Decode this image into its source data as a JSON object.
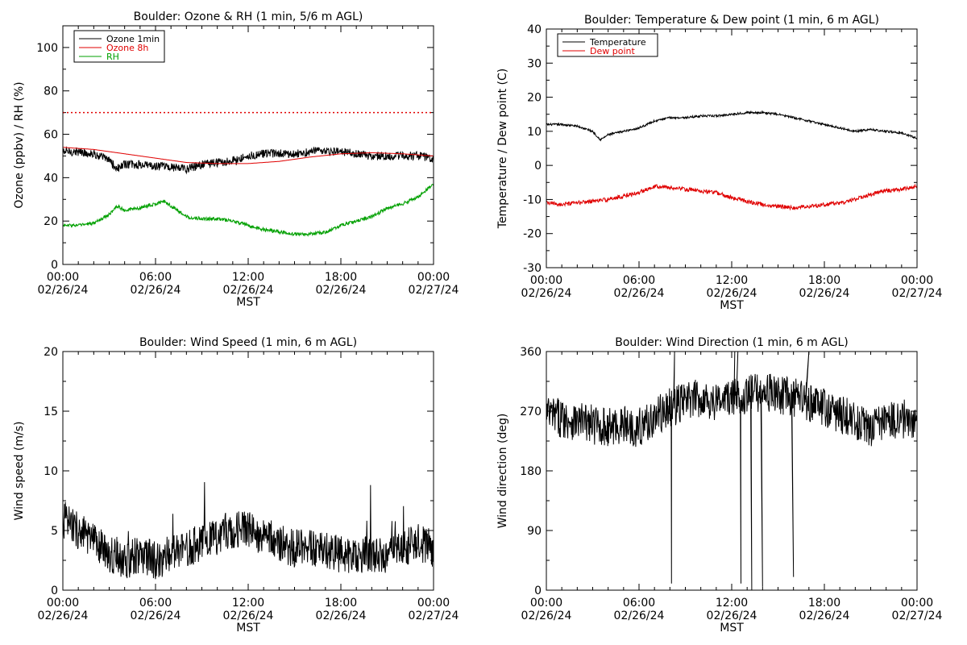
{
  "colors": {
    "background": "#ffffff",
    "axis": "#000000",
    "ozone_1min": "#000000",
    "ozone_8h": "#e00000",
    "rh": "#00a000",
    "temperature": "#000000",
    "dew_point": "#e00000",
    "wind": "#000000"
  },
  "chart_data": [
    {
      "id": "ozone_rh",
      "type": "line",
      "title": "Boulder: Ozone & RH (1 min, 5/6 m AGL)",
      "xlabel": "MST",
      "ylabel": "Ozone (ppbv) / RH (%)",
      "ylim": [
        0,
        110
      ],
      "yticks": [
        0,
        20,
        40,
        60,
        80,
        100
      ],
      "xlim": [
        "02/26/24 00:00",
        "02/27/24 00:00"
      ],
      "xticks": [
        {
          "time": "00:00",
          "date": "02/26/24"
        },
        {
          "time": "06:00",
          "date": "02/26/24"
        },
        {
          "time": "12:00",
          "date": "02/26/24"
        },
        {
          "time": "18:00",
          "date": "02/26/24"
        },
        {
          "time": "00:00",
          "date": "02/27/24"
        }
      ],
      "legend_position": "top-left",
      "reference_line": {
        "y": 70,
        "style": "dotted",
        "color": "#e00000"
      },
      "series": [
        {
          "name": "Ozone 1min",
          "color": "#000000",
          "noise": 2.0,
          "sharp": 12,
          "sharp_sign": -1,
          "x_hours": [
            0,
            1,
            2,
            3,
            3.5,
            4,
            5,
            6,
            7,
            8,
            9,
            10,
            11,
            12,
            13,
            14,
            15,
            16,
            17,
            18,
            19,
            20,
            21,
            22,
            23,
            24
          ],
          "y": [
            52,
            52,
            51,
            48,
            44,
            46,
            46,
            45,
            45,
            44,
            46,
            47,
            48,
            50,
            51,
            51,
            51,
            52,
            52,
            52,
            51,
            50,
            50,
            50,
            50,
            49
          ]
        },
        {
          "name": "Ozone 8h",
          "color": "#e00000",
          "noise": 0,
          "x_hours": [
            0,
            2,
            4,
            6,
            8,
            10,
            12,
            14,
            16,
            18,
            20,
            22,
            24
          ],
          "y": [
            54,
            53,
            51,
            49,
            47,
            46.5,
            46.5,
            47.5,
            49.5,
            51,
            51.5,
            51,
            50
          ]
        },
        {
          "name": "RH",
          "color": "#00a000",
          "noise": 0.8,
          "x_hours": [
            0,
            1,
            2,
            3,
            3.5,
            4,
            5,
            6,
            6.5,
            7,
            8,
            9,
            10,
            11,
            12,
            13,
            14,
            15,
            16,
            17,
            18,
            19,
            20,
            21,
            22,
            23,
            24
          ],
          "y": [
            18,
            18,
            19,
            23,
            27,
            25,
            26,
            28,
            29,
            27,
            22,
            21,
            21,
            20,
            18,
            16,
            15,
            14,
            14,
            15,
            18,
            20,
            22,
            26,
            28,
            31,
            37
          ]
        }
      ]
    },
    {
      "id": "temp_dew",
      "type": "line",
      "title": "Boulder: Temperature & Dew point (1 min, 6 m AGL)",
      "xlabel": "MST",
      "ylabel": "Temperature / Dew point (C)",
      "ylim": [
        -30,
        40
      ],
      "yticks": [
        -30,
        -20,
        -10,
        0,
        10,
        20,
        30,
        40
      ],
      "xlim": [
        "02/26/24 00:00",
        "02/27/24 00:00"
      ],
      "xticks": [
        {
          "time": "00:00",
          "date": "02/26/24"
        },
        {
          "time": "06:00",
          "date": "02/26/24"
        },
        {
          "time": "12:00",
          "date": "02/26/24"
        },
        {
          "time": "18:00",
          "date": "02/26/24"
        },
        {
          "time": "00:00",
          "date": "02/27/24"
        }
      ],
      "legend_position": "top-left",
      "series": [
        {
          "name": "Temperature",
          "color": "#000000",
          "noise": 0.3,
          "x_hours": [
            0,
            1,
            2,
            3,
            3.5,
            4,
            5,
            6,
            7,
            8,
            9,
            10,
            11,
            12,
            13,
            14,
            15,
            16,
            17,
            18,
            19,
            20,
            21,
            22,
            23,
            24
          ],
          "y": [
            12,
            12,
            11.5,
            10,
            7.5,
            9,
            10,
            11,
            13,
            14,
            14,
            14.5,
            14.5,
            15,
            15.5,
            15.5,
            15,
            14,
            13,
            12,
            11,
            10,
            10.5,
            10,
            9.5,
            8
          ]
        },
        {
          "name": "Dew point",
          "color": "#e00000",
          "noise": 0.6,
          "x_hours": [
            0,
            1,
            2,
            3,
            4,
            5,
            6,
            7,
            8,
            9,
            10,
            11,
            12,
            13,
            14,
            15,
            16,
            17,
            18,
            19,
            20,
            21,
            22,
            23,
            24
          ],
          "y": [
            -11,
            -11.5,
            -11,
            -10.5,
            -10,
            -9,
            -8,
            -6,
            -6.5,
            -7,
            -7.5,
            -8,
            -9.5,
            -10.5,
            -11.5,
            -12,
            -12.5,
            -12,
            -11.5,
            -11,
            -10,
            -8.5,
            -7.5,
            -7,
            -6
          ]
        }
      ]
    },
    {
      "id": "wind_speed",
      "type": "line",
      "title": "Boulder: Wind Speed (1 min, 6 m AGL)",
      "xlabel": "MST",
      "ylabel": "Wind speed (m/s)",
      "ylim": [
        0,
        20
      ],
      "yticks": [
        0,
        5,
        10,
        15,
        20
      ],
      "xlim": [
        "02/26/24 00:00",
        "02/27/24 00:00"
      ],
      "xticks": [
        {
          "time": "00:00",
          "date": "02/26/24"
        },
        {
          "time": "06:00",
          "date": "02/26/24"
        },
        {
          "time": "12:00",
          "date": "02/26/24"
        },
        {
          "time": "18:00",
          "date": "02/26/24"
        },
        {
          "time": "00:00",
          "date": "02/27/24"
        }
      ],
      "series": [
        {
          "name": "",
          "color": "#000000",
          "noise": 1.6,
          "x_hours": [
            0,
            1,
            2,
            3,
            4,
            5,
            6,
            7,
            8,
            9,
            10,
            11,
            12,
            13,
            14,
            15,
            16,
            17,
            18,
            19,
            20,
            21,
            22,
            23,
            24
          ],
          "y": [
            6,
            5,
            4,
            3,
            2.5,
            3,
            2.5,
            3,
            3.5,
            4,
            4.5,
            5,
            5,
            4.5,
            4,
            3.5,
            3.5,
            3.5,
            3,
            3,
            3,
            3,
            3.5,
            4,
            3.5
          ]
        }
      ]
    },
    {
      "id": "wind_direction",
      "type": "line",
      "title": "Boulder: Wind Direction (1 min, 6 m AGL)",
      "xlabel": "MST",
      "ylabel": "Wind direction (deg)",
      "ylim": [
        0,
        360
      ],
      "yticks": [
        0,
        90,
        180,
        270,
        360
      ],
      "xlim": [
        "02/26/24 00:00",
        "02/27/24 00:00"
      ],
      "xticks": [
        {
          "time": "00:00",
          "date": "02/26/24"
        },
        {
          "time": "06:00",
          "date": "02/26/24"
        },
        {
          "time": "12:00",
          "date": "02/26/24"
        },
        {
          "time": "18:00",
          "date": "02/26/24"
        },
        {
          "time": "00:00",
          "date": "02/27/24"
        }
      ],
      "series": [
        {
          "name": "",
          "color": "#000000",
          "noise": 30,
          "x_hours": [
            0,
            1,
            2,
            3,
            4,
            5,
            6,
            7,
            8,
            9,
            10,
            11,
            12,
            13,
            14,
            15,
            16,
            17,
            18,
            19,
            20,
            21,
            22,
            23,
            24
          ],
          "y": [
            265,
            260,
            255,
            250,
            245,
            250,
            245,
            260,
            275,
            285,
            290,
            285,
            290,
            295,
            300,
            295,
            290,
            285,
            275,
            265,
            255,
            245,
            255,
            260,
            250
          ],
          "spikes": [
            {
              "x_hours": 8.1,
              "y": 10
            },
            {
              "x_hours": 12.6,
              "y": 10
            },
            {
              "x_hours": 13.3,
              "y": 0
            },
            {
              "x_hours": 14.0,
              "y": 5
            },
            {
              "x_hours": 16.0,
              "y": 20
            },
            {
              "x_hours": 8.3,
              "y": 360
            },
            {
              "x_hours": 12.2,
              "y": 360
            },
            {
              "x_hours": 12.4,
              "y": 360
            },
            {
              "x_hours": 17.0,
              "y": 360
            }
          ]
        }
      ]
    }
  ]
}
